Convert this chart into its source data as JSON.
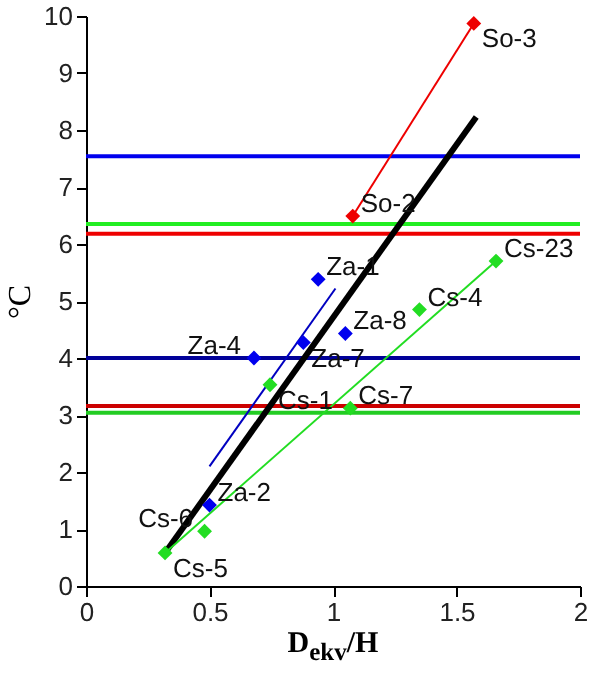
{
  "chart_data": {
    "type": "scatter",
    "xlabel": "D$_{ekv}$/H",
    "ylabel": "°C",
    "xlim": [
      0,
      2
    ],
    "xticks": [
      0,
      0.5,
      1,
      1.5,
      2
    ],
    "ylim": [
      0,
      10
    ],
    "yticks": [
      0,
      1,
      2,
      3,
      4,
      5,
      6,
      7,
      8,
      9,
      10
    ],
    "grid": false,
    "marker": "diamond",
    "series": [
      {
        "type": "line",
        "marker": "none",
        "color": "#000000",
        "x": [
          0.32,
          1.58
        ],
        "values": [
          0.58,
          8.23
        ]
      },
      {
        "type": "line",
        "marker": "none",
        "color": "#0000c0",
        "x": [
          0.5,
          1.01
        ],
        "values": [
          2.1,
          5.22
        ]
      },
      {
        "type": "line",
        "marker": "none",
        "color": "#22dd22",
        "x": [
          0.32,
          1.66
        ],
        "values": [
          0.58,
          5.7
        ]
      },
      {
        "type": "line",
        "marker": "diamond",
        "color": "#ee0000",
        "x": [
          1.08,
          1.57
        ],
        "values": [
          6.49,
          9.87
        ]
      },
      {
        "color": "#0000ee",
        "x": [
          0.94,
          0.68,
          0.88,
          1.05,
          0.5
        ],
        "values": [
          5.38,
          4.0,
          4.27,
          4.43,
          1.42
        ]
      },
      {
        "color": "#22dd22",
        "x": [
          0.32,
          0.48,
          0.745,
          1.07,
          1.35,
          1.66
        ],
        "values": [
          0.58,
          0.96,
          3.53,
          3.12,
          4.85,
          5.7
        ]
      }
    ],
    "ref_lines": [
      {
        "axis": "y",
        "value": 7.54,
        "color": "#0000ee"
      },
      {
        "axis": "y",
        "value": 6.35,
        "color": "#22ee22"
      },
      {
        "axis": "y",
        "value": 6.18,
        "color": "#ee0000"
      },
      {
        "axis": "y",
        "value": 4.0,
        "color": "#000099"
      },
      {
        "axis": "y",
        "value": 3.16,
        "color": "#cc0000"
      },
      {
        "axis": "y",
        "value": 3.04,
        "color": "#22cc22"
      }
    ],
    "annotations": [
      {
        "text": "So-3",
        "x": 1.57,
        "y": 9.87
      },
      {
        "text": "So-2",
        "x": 1.08,
        "y": 6.49
      },
      {
        "text": "Za-1",
        "x": 0.94,
        "y": 5.38
      },
      {
        "text": "Za-4",
        "x": 0.68,
        "y": 4.0
      },
      {
        "text": "Za-7",
        "x": 0.88,
        "y": 4.27
      },
      {
        "text": "Za-8",
        "x": 1.05,
        "y": 4.43
      },
      {
        "text": "Za-2",
        "x": 0.5,
        "y": 1.42
      },
      {
        "text": "Cs-5",
        "x": 0.32,
        "y": 0.58
      },
      {
        "text": "Cs-6",
        "x": 0.48,
        "y": 0.96
      },
      {
        "text": "Cs-1",
        "x": 0.745,
        "y": 3.53
      },
      {
        "text": "Cs-7",
        "x": 1.07,
        "y": 3.12
      },
      {
        "text": "Cs-4",
        "x": 1.35,
        "y": 4.85
      },
      {
        "text": "Cs-23",
        "x": 1.66,
        "y": 5.7
      }
    ]
  }
}
